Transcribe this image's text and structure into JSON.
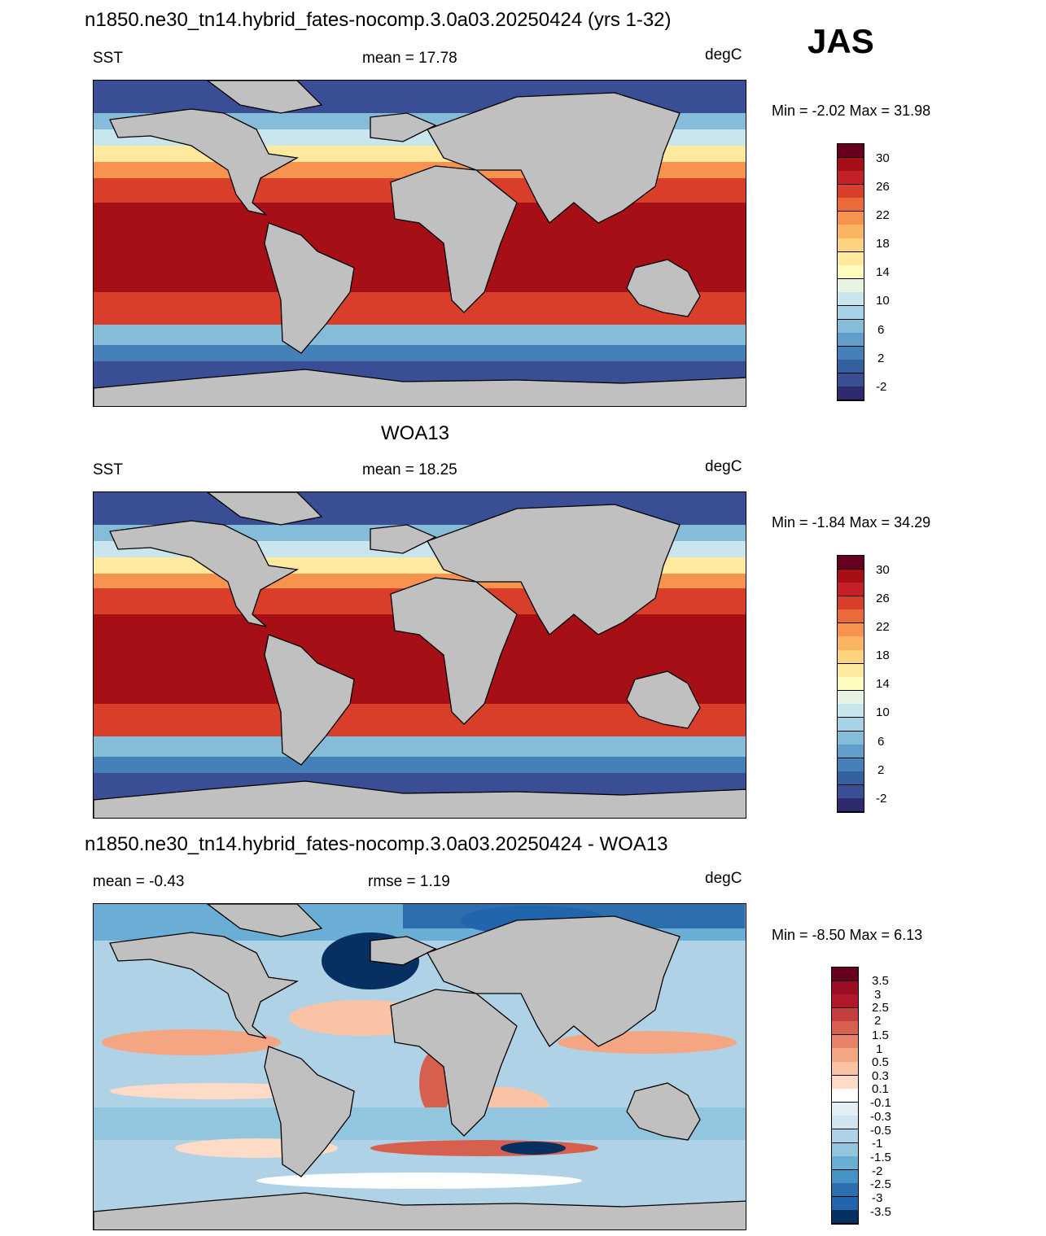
{
  "season": "JAS",
  "panels": [
    {
      "title": "n1850.ne30_tn14.hybrid_fates-nocomp.3.0a03.20250424 (yrs 1-32)",
      "left_label": "SST",
      "center_label": "mean =  17.78",
      "units": "degC",
      "minmax": "Min =  -2.02 Max =  31.98"
    },
    {
      "title": "WOA13",
      "left_label": "SST",
      "center_label": "mean =  18.25",
      "units": "degC",
      "minmax": "Min =  -1.84 Max =  34.29"
    },
    {
      "title": "n1850.ne30_tn14.hybrid_fates-nocomp.3.0a03.20250424 - WOA13",
      "left_label": "mean =  -0.43",
      "center_label": "rmse =   1.19",
      "units": "degC",
      "minmax": "Min =  -8.50 Max =   6.13"
    }
  ],
  "sst_colorbar": {
    "labels": [
      "30",
      "26",
      "22",
      "18",
      "14",
      "10",
      "6",
      "2",
      "-2"
    ],
    "colors": [
      "#67001f",
      "#a50f15",
      "#c52027",
      "#d93e2b",
      "#ea6a38",
      "#f7934f",
      "#fbb462",
      "#fdd380",
      "#fee99e",
      "#fefbbd",
      "#e7f4e2",
      "#c9e6ef",
      "#a8d3e6",
      "#84bcda",
      "#619ecb",
      "#4580b9",
      "#35609f",
      "#3a4e96",
      "#2d2a6e"
    ]
  },
  "diff_colorbar": {
    "labels": [
      "3.5",
      "3",
      "2.5",
      "2",
      "1.5",
      "1",
      "0.5",
      "0.3",
      "0.1",
      "-0.1",
      "-0.3",
      "-0.5",
      "-1",
      "-1.5",
      "-2",
      "-2.5",
      "-3",
      "-3.5"
    ],
    "colors": [
      "#67001f",
      "#9b0f24",
      "#b2182b",
      "#c53e3d",
      "#d6604d",
      "#e58267",
      "#f4a582",
      "#fac3a6",
      "#fddbc7",
      "#ffffff",
      "#e4eef5",
      "#d1e5f0",
      "#b0d2e7",
      "#92c5de",
      "#6aaed6",
      "#4393c3",
      "#2d6fae",
      "#2166ac",
      "#053061"
    ]
  }
}
